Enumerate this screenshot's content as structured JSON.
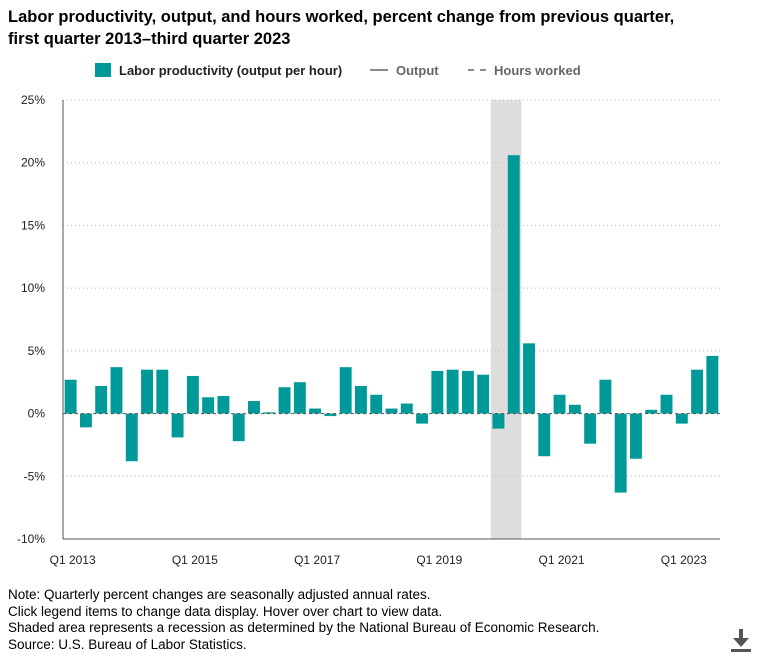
{
  "title": "Labor productivity, output, and hours worked, percent change from previous quarter, first quarter 2013–third quarter 2023",
  "legend": {
    "productivity": "Labor productivity (output per hour)",
    "output": "Output",
    "hours": "Hours worked"
  },
  "colors": {
    "bar": "#009999",
    "recession": "#dddddd",
    "grid": "#bbbbbb"
  },
  "notes": [
    "Note: Quarterly percent changes are seasonally adjusted annual rates.",
    "Click legend items to change data display. Hover over chart to view data.",
    "Shaded area represents a recession as determined by the National Bureau of Economic Research.",
    "Source: U.S. Bureau of Labor Statistics."
  ],
  "download_icon": "download-icon",
  "chart_data": {
    "type": "bar",
    "title": "Labor productivity, output, and hours worked, percent change from previous quarter, first quarter 2013–third quarter 2023",
    "ylim": [
      -10,
      25
    ],
    "yticks": [
      25,
      20,
      15,
      10,
      5,
      0,
      -5,
      -10
    ],
    "ytick_labels": [
      "25%",
      "20%",
      "15%",
      "10%",
      "5%",
      "0%",
      "-5%",
      "-10%"
    ],
    "xtick_labels": [
      {
        "index": 0,
        "label": "Q1 2013"
      },
      {
        "index": 8,
        "label": "Q1 2015"
      },
      {
        "index": 16,
        "label": "Q1 2017"
      },
      {
        "index": 24,
        "label": "Q1 2019"
      },
      {
        "index": 32,
        "label": "Q1 2021"
      },
      {
        "index": 40,
        "label": "Q1 2023"
      }
    ],
    "recession": {
      "start_index": 28,
      "end_index": 29
    },
    "grid": "horizontal dotted",
    "legend_position": "top",
    "categories": [
      "Q1 2013",
      "Q2 2013",
      "Q3 2013",
      "Q4 2013",
      "Q1 2014",
      "Q2 2014",
      "Q3 2014",
      "Q4 2014",
      "Q1 2015",
      "Q2 2015",
      "Q3 2015",
      "Q4 2015",
      "Q1 2016",
      "Q2 2016",
      "Q3 2016",
      "Q4 2016",
      "Q1 2017",
      "Q2 2017",
      "Q3 2017",
      "Q4 2017",
      "Q1 2018",
      "Q2 2018",
      "Q3 2018",
      "Q4 2018",
      "Q1 2019",
      "Q2 2019",
      "Q3 2019",
      "Q4 2019",
      "Q1 2020",
      "Q2 2020",
      "Q3 2020",
      "Q4 2020",
      "Q1 2021",
      "Q2 2021",
      "Q3 2021",
      "Q4 2021",
      "Q1 2022",
      "Q2 2022",
      "Q3 2022",
      "Q4 2022",
      "Q1 2023",
      "Q2 2023",
      "Q3 2023"
    ],
    "series": [
      {
        "name": "Labor productivity (output per hour)",
        "values": [
          2.7,
          -1.1,
          2.2,
          3.7,
          -3.8,
          3.5,
          3.5,
          -1.9,
          3.0,
          1.3,
          1.4,
          -2.2,
          1.0,
          0.1,
          2.1,
          2.5,
          0.4,
          -0.2,
          3.7,
          2.2,
          1.5,
          0.4,
          0.8,
          -0.8,
          3.4,
          3.5,
          3.4,
          3.1,
          -1.2,
          20.6,
          5.6,
          -3.4,
          1.5,
          0.7,
          -2.4,
          2.7,
          -6.3,
          -3.6,
          0.3,
          1.5,
          -0.8,
          3.5,
          4.6
        ]
      }
    ]
  }
}
